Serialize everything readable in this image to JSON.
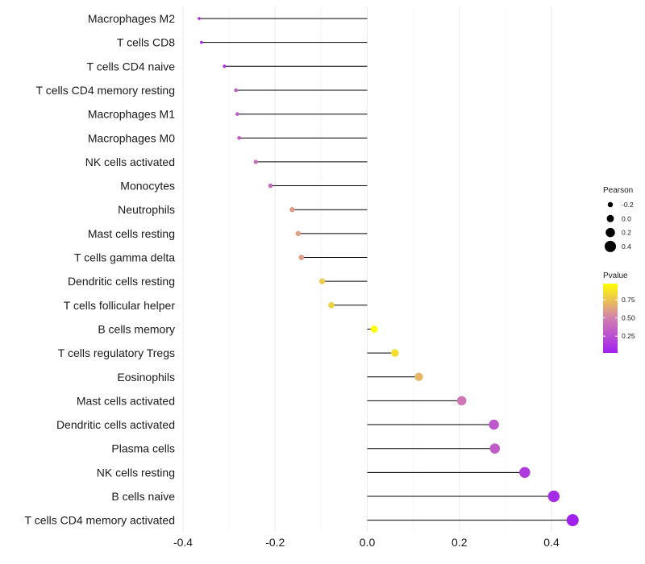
{
  "chart_data": {
    "type": "lollipop",
    "categories": [
      "Macrophages M2",
      "T cells CD8",
      "T cells CD4 naive",
      "T cells CD4 memory resting",
      "Macrophages M1",
      "Macrophages M0",
      "NK cells activated",
      "Monocytes",
      "Neutrophils",
      "Mast cells resting",
      "T cells gamma delta",
      "Dendritic cells resting",
      "T cells follicular helper",
      "B cells memory",
      "T cells regulatory  Tregs",
      "Eosinophils",
      "Mast cells activated",
      "Dendritic cells activated",
      "Plasma cells",
      "NK cells resting",
      "B cells naive",
      "T cells CD4 memory activated"
    ],
    "pearson": [
      -0.365,
      -0.36,
      -0.31,
      -0.285,
      -0.282,
      -0.278,
      -0.242,
      -0.21,
      -0.163,
      -0.15,
      -0.143,
      -0.098,
      -0.078,
      0.015,
      0.06,
      0.112,
      0.205,
      0.275,
      0.277,
      0.342,
      0.405,
      0.446
    ],
    "pvalue": [
      0.02,
      0.03,
      0.15,
      0.3,
      0.3,
      0.33,
      0.4,
      0.38,
      0.6,
      0.62,
      0.6,
      0.77,
      0.8,
      0.97,
      0.85,
      0.7,
      0.45,
      0.3,
      0.32,
      0.15,
      0.08,
      0.03
    ],
    "xlim": [
      -0.42,
      0.52
    ],
    "xticks": [
      -0.4,
      -0.2,
      0.0,
      0.2,
      0.4
    ],
    "xtick_labels": [
      "-0.4",
      "-0.2",
      "0.0",
      "0.2",
      "0.4"
    ],
    "xlabel": "",
    "ylabel": "",
    "grid": true,
    "size_legend": {
      "title": "Pearson",
      "values": [
        -0.2,
        0.0,
        0.2,
        0.4
      ],
      "labels": [
        "-0.2",
        "0.0",
        "0.2",
        "0.4"
      ]
    },
    "color_legend": {
      "title": "Pvalue",
      "ticks": [
        0.25,
        0.5,
        0.75
      ],
      "labels": [
        "0.25",
        "0.50",
        "0.75"
      ],
      "range": [
        0.02,
        0.97
      ],
      "low_color": "#a020f0",
      "mid_color": "#d37fb0",
      "high_color": "#ffff00"
    },
    "stem_color": "#000000",
    "grid_color": "#ebebeb"
  }
}
